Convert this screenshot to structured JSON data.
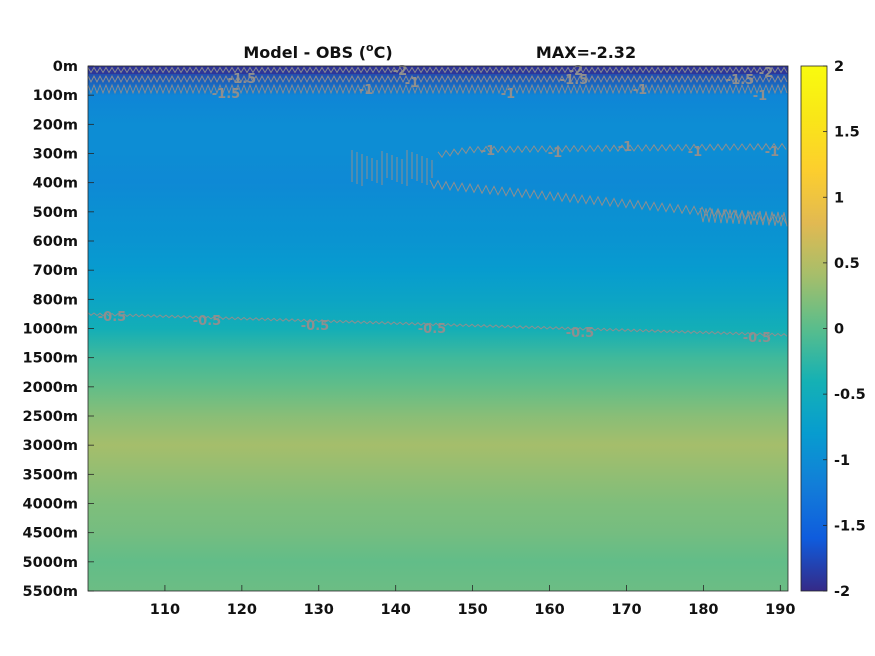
{
  "chart_data": {
    "type": "heatmap",
    "title_text": "Model - OBS (",
    "title_sup": "o",
    "title_unit": "C)",
    "max_label": "MAX=-2.32",
    "x_ticks": [
      110,
      120,
      130,
      140,
      150,
      160,
      170,
      180,
      190
    ],
    "xlim": [
      100,
      191
    ],
    "y_ticks": [
      "0m",
      "100m",
      "200m",
      "300m",
      "400m",
      "500m",
      "600m",
      "700m",
      "800m",
      "1000m",
      "1500m",
      "2000m",
      "2500m",
      "3000m",
      "3500m",
      "4000m",
      "4500m",
      "5000m",
      "5500m"
    ],
    "colorbar": {
      "colormap": "parula",
      "range": [
        -2,
        2
      ],
      "ticks": [
        2,
        1.5,
        1,
        0.5,
        0,
        -0.5,
        -1,
        -1.5,
        -2
      ]
    },
    "depth_profile": [
      {
        "depth": "0m",
        "value": -1.9
      },
      {
        "depth": "100m",
        "value": -1.1
      },
      {
        "depth": "200m",
        "value": -1.0
      },
      {
        "depth": "300m",
        "value": -1.0
      },
      {
        "depth": "400m",
        "value": -1.05
      },
      {
        "depth": "500m",
        "value": -0.95
      },
      {
        "depth": "600m",
        "value": -0.9
      },
      {
        "depth": "700m",
        "value": -0.8
      },
      {
        "depth": "800m",
        "value": -0.65
      },
      {
        "depth": "1000m",
        "value": -0.45
      },
      {
        "depth": "1500m",
        "value": -0.15
      },
      {
        "depth": "2000m",
        "value": 0.05
      },
      {
        "depth": "2500m",
        "value": 0.25
      },
      {
        "depth": "3000m",
        "value": 0.4
      },
      {
        "depth": "3500m",
        "value": 0.3
      },
      {
        "depth": "4000m",
        "value": 0.2
      },
      {
        "depth": "4500m",
        "value": 0.15
      },
      {
        "depth": "5000m",
        "value": 0.05
      },
      {
        "depth": "5500m",
        "value": 0.1
      }
    ],
    "contour_labels": [
      "-2",
      "-1.5",
      "-1",
      "-1.5",
      "-1",
      "-2",
      "-1.5",
      "-1",
      "-1",
      "-1.5",
      "-2",
      "-1",
      "-1",
      "-1",
      "-1",
      "-1",
      "-1",
      "-0.5",
      "-0.5",
      "-0.5",
      "-0.5",
      "-0.5",
      "-0.5"
    ],
    "contour_color": "#8f8f8f"
  }
}
